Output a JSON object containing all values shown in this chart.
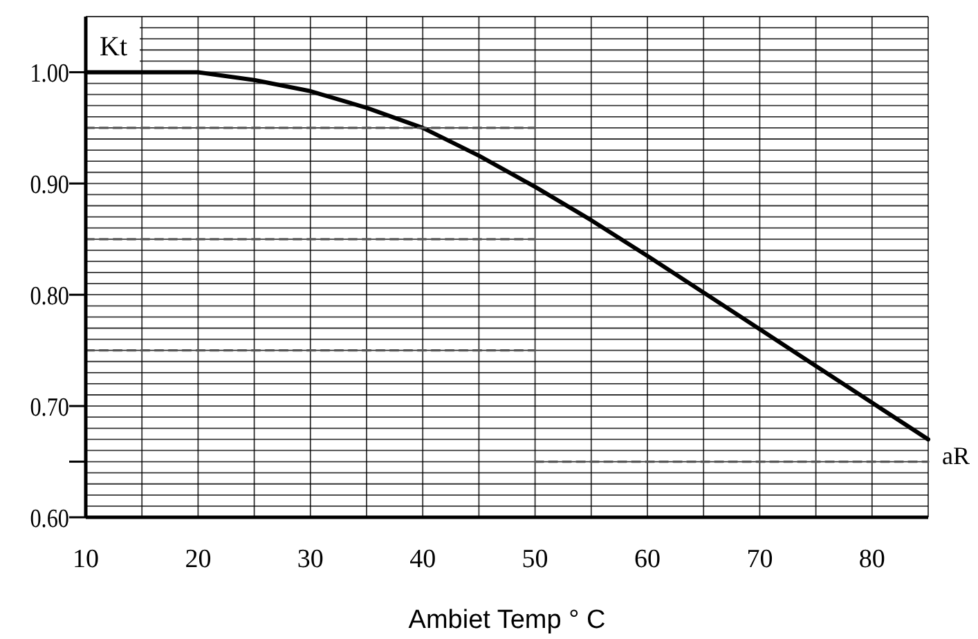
{
  "chart_data": {
    "type": "line",
    "xlabel": "Ambiet Temp ° C",
    "ylabel": "Kt",
    "annotations": [
      {
        "text": "aR",
        "x": 85,
        "y": 0.67
      }
    ],
    "xlim": [
      10,
      85
    ],
    "xticks": [
      10,
      20,
      30,
      40,
      50,
      60,
      70,
      80
    ],
    "ylim": [
      0.6,
      1.05
    ],
    "yticks": [
      {
        "value": 0.6,
        "label": "0.60"
      },
      {
        "value": 0.65,
        "label": null
      },
      {
        "value": 0.7,
        "label": "0.70"
      },
      {
        "value": 0.8,
        "label": "0.80"
      },
      {
        "value": 0.9,
        "label": "0.90"
      },
      {
        "value": 1.0,
        "label": "1.00"
      }
    ],
    "grid": true,
    "series": [
      {
        "color": "#000000",
        "line_style": "solid",
        "x": [
          10,
          20,
          25,
          30,
          35,
          40,
          45,
          50,
          55,
          60,
          65,
          70,
          75,
          80,
          85
        ],
        "values": [
          1.0,
          1.0,
          0.993,
          0.983,
          0.968,
          0.95,
          0.925,
          0.897,
          0.867,
          0.835,
          0.802,
          0.769,
          0.736,
          0.703,
          0.67
        ]
      },
      {
        "color": "#555555",
        "line_style": "dashed",
        "x": [
          10,
          50
        ],
        "values": [
          0.95,
          0.95
        ]
      },
      {
        "color": "#555555",
        "line_style": "dashed",
        "x": [
          10,
          50
        ],
        "values": [
          0.85,
          0.85
        ]
      },
      {
        "color": "#555555",
        "line_style": "dashed",
        "x": [
          10,
          50
        ],
        "values": [
          0.75,
          0.75
        ]
      },
      {
        "color": "#555555",
        "line_style": "dashed",
        "x": [
          50,
          85
        ],
        "values": [
          0.65,
          0.65
        ]
      }
    ]
  }
}
